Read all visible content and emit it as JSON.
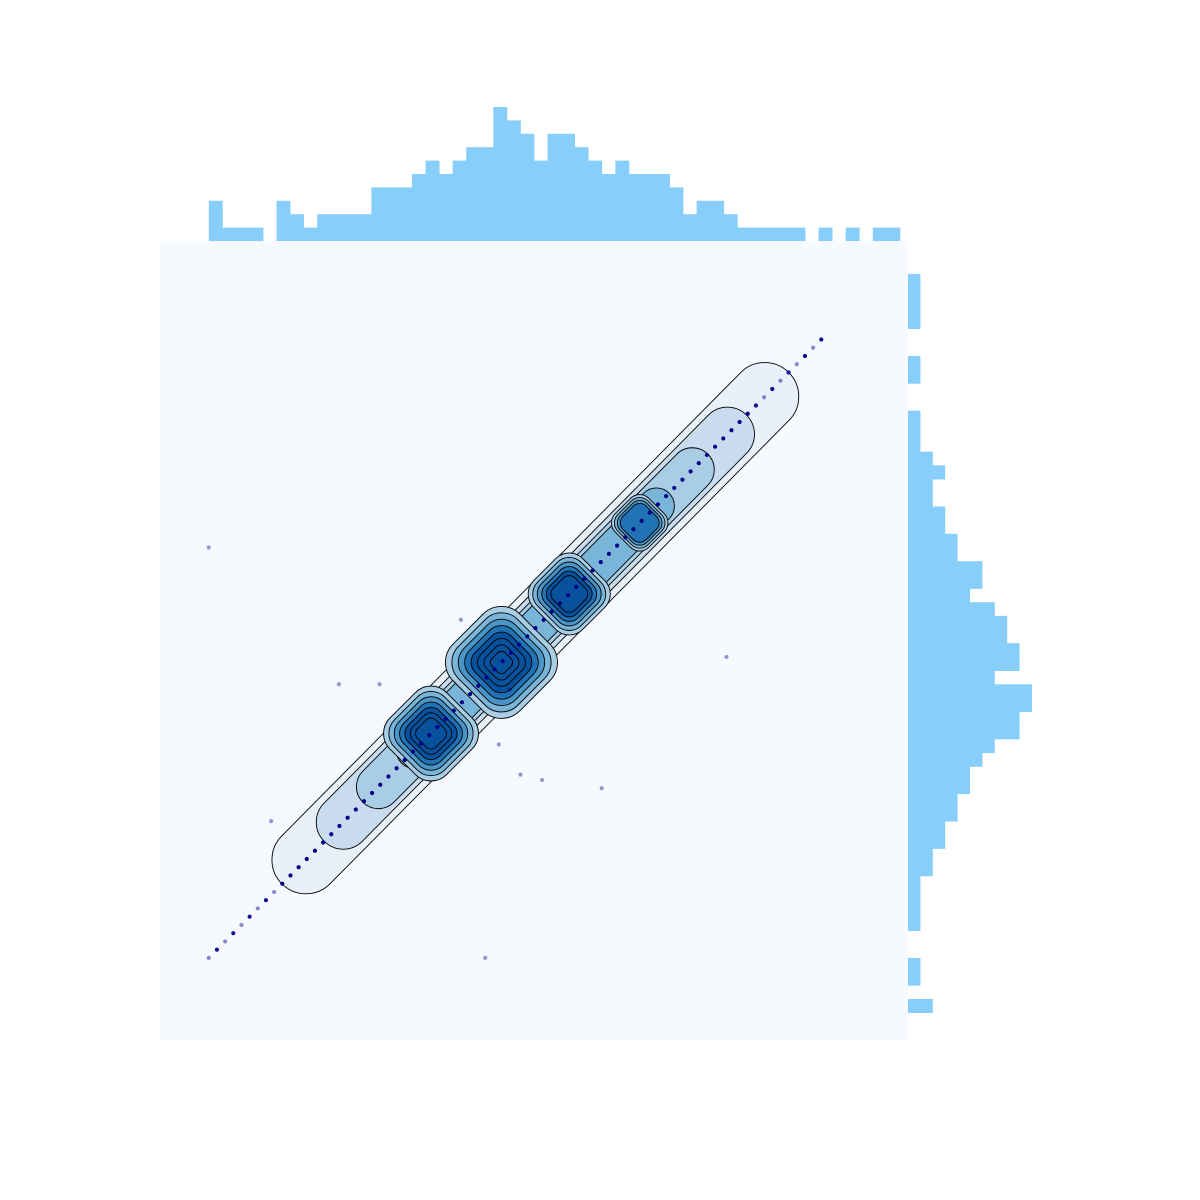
{
  "chart_data": {
    "type": "scatter",
    "title": "",
    "xlabel": "",
    "ylabel": "",
    "grid": false,
    "legend": "none",
    "colors": {
      "joint_background": "#f6faff",
      "histogram": "#87cefa",
      "points": "#00008b",
      "contour_line": "#000000",
      "contour_fills": [
        "#e8f1fa",
        "#c9dcef",
        "#a9cde4",
        "#79b5d9",
        "#4a94c6",
        "#2171b5",
        "#08519c"
      ]
    },
    "xlim": [
      -6.2,
      7.6
    ],
    "ylim": [
      -6.8,
      7.8
    ],
    "diagonal_points": {
      "x_start": -5.3,
      "x_end": 6.0,
      "y_start": -5.3,
      "y_end": 6.0,
      "count": 76
    },
    "outliers": [
      {
        "x": -5.3,
        "y": 2.2
      },
      {
        "x": -0.65,
        "y": 0.88
      },
      {
        "x": -2.9,
        "y": -0.3
      },
      {
        "x": -2.15,
        "y": -0.3
      },
      {
        "x": -4.15,
        "y": -2.8
      },
      {
        "x": 0.05,
        "y": -1.4
      },
      {
        "x": 0.45,
        "y": -1.95
      },
      {
        "x": 0.85,
        "y": -2.05
      },
      {
        "x": 1.95,
        "y": -2.2
      },
      {
        "x": 4.25,
        "y": 0.2
      },
      {
        "x": 0.25,
        "y": -0.4
      },
      {
        "x": -0.2,
        "y": -5.3
      }
    ],
    "density_peaks": [
      {
        "x": -1.2,
        "y": -1.2
      },
      {
        "x": 0.1,
        "y": 0.1
      },
      {
        "x": 1.35,
        "y": 1.35
      },
      {
        "x": 2.65,
        "y": 2.65
      }
    ],
    "x_histogram": {
      "bin_start": -5.3,
      "bin_width": 0.25,
      "counts": [
        3,
        1,
        1,
        1,
        0,
        3,
        2,
        1,
        2,
        2,
        2,
        2,
        4,
        4,
        4,
        5,
        6,
        5,
        6,
        7,
        7,
        10,
        9,
        8,
        6,
        8,
        8,
        7,
        6,
        5,
        6,
        5,
        5,
        5,
        4,
        2,
        3,
        3,
        2,
        1,
        1,
        1,
        1,
        1,
        0,
        1,
        0,
        1,
        0,
        1,
        1
      ]
    },
    "y_histogram": {
      "bin_start": -6.3,
      "bin_width": 0.25,
      "counts": [
        2,
        0,
        1,
        1,
        0,
        0,
        1,
        1,
        1,
        1,
        2,
        2,
        3,
        3,
        4,
        4,
        5,
        5,
        6,
        7,
        9,
        9,
        10,
        10,
        7,
        9,
        9,
        8,
        8,
        7,
        5,
        6,
        6,
        4,
        4,
        3,
        3,
        2,
        2,
        3,
        2,
        1,
        1,
        1,
        0,
        0,
        1,
        1,
        0,
        0,
        1,
        1,
        1,
        1
      ]
    }
  }
}
